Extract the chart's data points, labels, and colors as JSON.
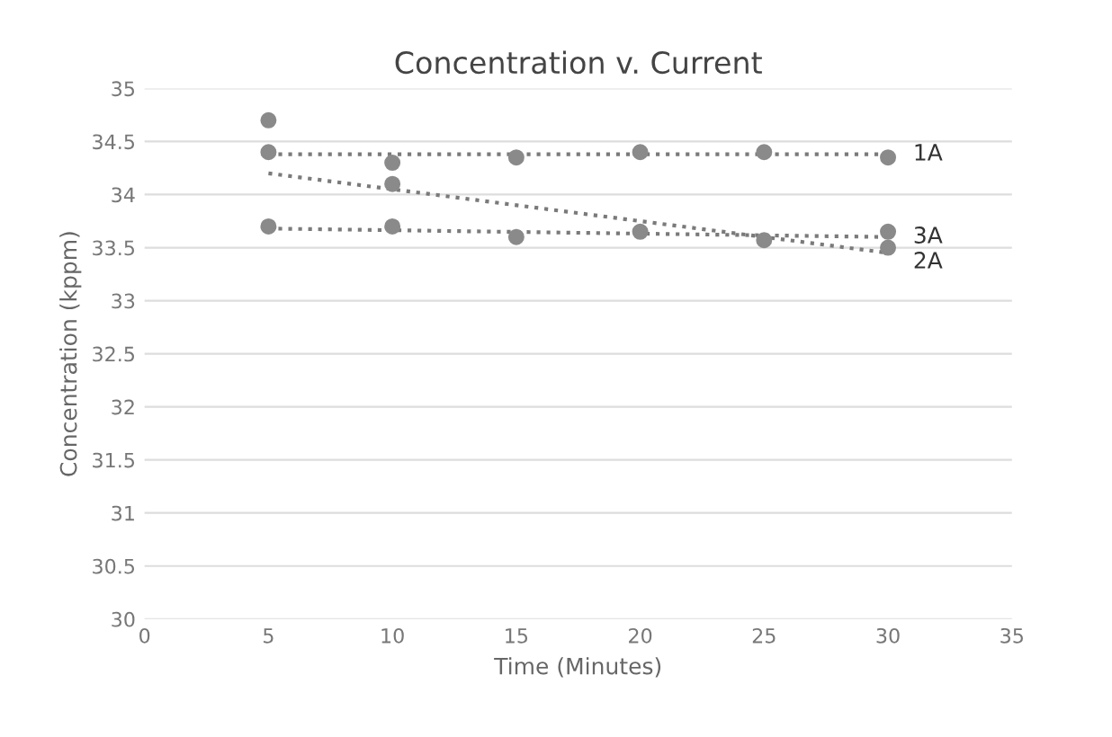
{
  "chart_data": {
    "type": "scatter",
    "title": "Concentration v. Current",
    "xlabel": "Time (Minutes)",
    "ylabel": "Concentration (kppm)",
    "xlim": [
      0,
      35
    ],
    "xticks": [
      0,
      5,
      10,
      15,
      20,
      25,
      30,
      35
    ],
    "ylim": [
      30,
      35
    ],
    "yticks": [
      30,
      30.5,
      31,
      31.5,
      32,
      32.5,
      33,
      33.5,
      34,
      34.5,
      35
    ],
    "grid": "y",
    "series": [
      {
        "marker": "circle",
        "color": "#8a8a8a",
        "x": [
          5,
          10,
          15,
          20,
          25,
          30
        ],
        "values": [
          34.4,
          34.3,
          34.35,
          34.4,
          34.4,
          34.35
        ]
      },
      {
        "marker": "circle",
        "color": "#8a8a8a",
        "x": [
          5,
          10,
          15,
          20,
          25,
          30
        ],
        "values": [
          34.7,
          34.1,
          null,
          null,
          null,
          33.5
        ]
      },
      {
        "marker": "circle",
        "color": "#8a8a8a",
        "x": [
          5,
          10,
          15,
          20,
          25,
          30
        ],
        "values": [
          33.7,
          33.7,
          33.6,
          33.65,
          33.57,
          33.65
        ]
      },
      {
        "name": "1A",
        "type": "line",
        "line_style": "dotted",
        "color": "#7a7a7a",
        "x": [
          5,
          30
        ],
        "values": [
          34.38,
          34.38
        ]
      },
      {
        "name": "2A",
        "type": "line",
        "line_style": "dotted",
        "color": "#7a7a7a",
        "x": [
          5,
          30
        ],
        "values": [
          34.2,
          33.45
        ]
      },
      {
        "name": "3A",
        "type": "line",
        "line_style": "dotted",
        "color": "#7a7a7a",
        "x": [
          5,
          30
        ],
        "values": [
          33.68,
          33.6
        ]
      }
    ]
  }
}
